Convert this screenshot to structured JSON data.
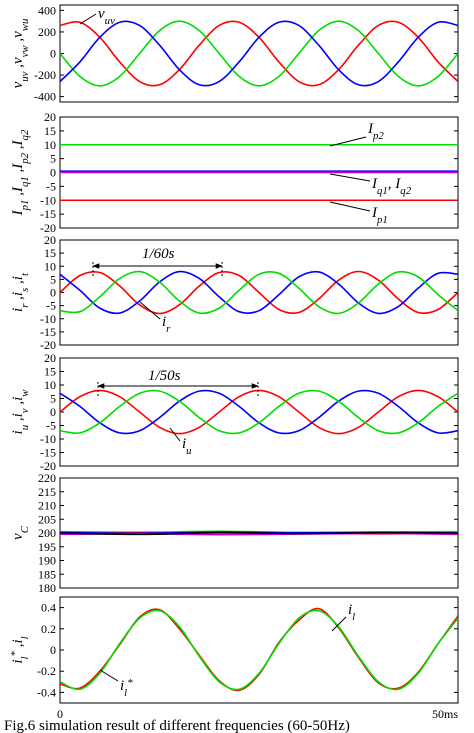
{
  "chart_data": [
    {
      "type": "line",
      "ylabel": [
        {
          "text": "v",
          "sub": "uv"
        },
        {
          "text": " ,"
        },
        {
          "text": "v",
          "sub": "vw"
        },
        {
          "text": " ,"
        },
        {
          "text": "v",
          "sub": "wu"
        }
      ],
      "x": [
        0,
        2.5,
        5,
        7.5,
        10,
        12.5,
        15,
        17.5,
        20,
        22.5,
        25,
        27.5,
        30,
        32.5,
        35,
        37.5,
        40,
        42.5,
        45,
        47.5,
        50
      ],
      "xlim": [
        0,
        50
      ],
      "ylim": [
        -450,
        450
      ],
      "yticks": [
        -400,
        -200,
        0,
        200,
        400
      ],
      "series": [
        {
          "color": "#ff0000",
          "values": [
            260,
            290,
            150,
            -78,
            -260,
            -290,
            -150,
            78,
            260,
            290,
            150,
            -78,
            -260,
            -290,
            -150,
            78,
            260,
            290,
            150,
            -78,
            -260
          ]
        },
        {
          "color": "#00dd00",
          "values": [
            0,
            -212,
            -300,
            -212,
            0,
            212,
            300,
            212,
            0,
            -212,
            -300,
            -212,
            0,
            212,
            300,
            212,
            0,
            -212,
            -300,
            -212,
            0
          ]
        },
        {
          "color": "#0000ff",
          "values": [
            -260,
            -78,
            150,
            290,
            260,
            78,
            -150,
            -290,
            -260,
            -78,
            150,
            290,
            260,
            78,
            -150,
            -290,
            -260,
            -78,
            150,
            290,
            260
          ]
        }
      ],
      "annotations": [
        [
          {
            "text": "v",
            "sub": "uv"
          }
        ]
      ]
    },
    {
      "type": "line",
      "ylabel": [
        {
          "text": "I",
          "sub": "p1"
        },
        {
          "text": " ,"
        },
        {
          "text": "I",
          "sub": "q1"
        },
        {
          "text": " ,"
        },
        {
          "text": "I",
          "sub": "p2"
        },
        {
          "text": " ,"
        },
        {
          "text": "I",
          "sub": "q2"
        }
      ],
      "x": [
        0,
        50
      ],
      "xlim": [
        0,
        50
      ],
      "ylim": [
        -20,
        20
      ],
      "yticks": [
        -20,
        -15,
        -10,
        -5,
        0,
        5,
        10,
        15,
        20
      ],
      "series": [
        {
          "color": "#00dd00",
          "values": [
            10,
            10
          ]
        },
        {
          "color": "#0000ff",
          "values": [
            0.5,
            0.5
          ]
        },
        {
          "color": "#cc00cc",
          "values": [
            0,
            0
          ]
        },
        {
          "color": "#ff0000",
          "values": [
            -10,
            -10
          ]
        }
      ],
      "annotations": [
        [
          {
            "text": "I",
            "sub": "p2"
          }
        ],
        [
          {
            "text": "I",
            "sub": "q1"
          },
          {
            "text": ", "
          },
          {
            "text": "I",
            "sub": "q2"
          }
        ],
        [
          {
            "text": "I",
            "sub": "p1"
          }
        ]
      ]
    },
    {
      "type": "line",
      "ylabel": [
        {
          "text": "i",
          "sub": "r"
        },
        {
          "text": " ,"
        },
        {
          "text": "i",
          "sub": "s"
        },
        {
          "text": " ,"
        },
        {
          "text": "i",
          "sub": "t"
        }
      ],
      "x": [
        0,
        2.5,
        5,
        7.5,
        10,
        12.5,
        15,
        17.5,
        20,
        22.5,
        25,
        27.5,
        30,
        32.5,
        35,
        37.5,
        40,
        42.5,
        45,
        47.5,
        50
      ],
      "xlim": [
        0,
        50
      ],
      "ylim": [
        -20,
        20
      ],
      "yticks": [
        -20,
        -15,
        -10,
        -5,
        0,
        5,
        10,
        15,
        20
      ],
      "series": [
        {
          "color": "#ff0000",
          "values": [
            0,
            6.47,
            7.61,
            2.47,
            -4.7,
            -8,
            -4.7,
            2.47,
            7.61,
            6.47,
            0,
            -6.47,
            -7.61,
            -2.47,
            4.7,
            8,
            4.7,
            -2.47,
            -7.61,
            -6.47,
            0
          ]
        },
        {
          "color": "#0000ff",
          "values": [
            6.93,
            0.84,
            -5.95,
            -7.82,
            -3.25,
            4,
            7.96,
            5.35,
            -1.66,
            -7.31,
            -6.93,
            -0.84,
            5.95,
            7.82,
            3.25,
            -4,
            -7.96,
            -5.35,
            1.66,
            7.31,
            6.93
          ]
        },
        {
          "color": "#00dd00",
          "values": [
            -6.93,
            -7.31,
            -1.66,
            5.35,
            7.96,
            4,
            -3.25,
            -7.82,
            -5.95,
            0.84,
            6.93,
            7.31,
            1.66,
            -5.35,
            -7.96,
            -4,
            3.25,
            7.82,
            5.95,
            -0.84,
            -6.93
          ]
        }
      ],
      "annotations": [
        [
          {
            "text": "1/60s"
          }
        ],
        [
          {
            "text": "i",
            "sub": "r"
          }
        ]
      ]
    },
    {
      "type": "line",
      "ylabel": [
        {
          "text": "i",
          "sub": "u"
        },
        {
          "text": " ,"
        },
        {
          "text": "i",
          "sub": "v"
        },
        {
          "text": " ,"
        },
        {
          "text": "i",
          "sub": "w"
        }
      ],
      "x": [
        0,
        2.5,
        5,
        7.5,
        10,
        12.5,
        15,
        17.5,
        20,
        22.5,
        25,
        27.5,
        30,
        32.5,
        35,
        37.5,
        40,
        42.5,
        45,
        47.5,
        50
      ],
      "xlim": [
        0,
        50
      ],
      "ylim": [
        -20,
        20
      ],
      "yticks": [
        -20,
        -15,
        -10,
        -5,
        0,
        5,
        10,
        15,
        20
      ],
      "series": [
        {
          "color": "#ff0000",
          "values": [
            0,
            5.66,
            8,
            5.66,
            0,
            -5.66,
            -8,
            -5.66,
            0,
            5.66,
            8,
            5.66,
            0,
            -5.66,
            -8,
            -5.66,
            0,
            5.66,
            8,
            5.66,
            0
          ]
        },
        {
          "color": "#0000ff",
          "values": [
            6.93,
            2.07,
            -4,
            -7.73,
            -6.93,
            -2.07,
            4,
            7.73,
            6.93,
            2.07,
            -4,
            -7.73,
            -6.93,
            -2.07,
            4,
            7.73,
            6.93,
            2.07,
            -4,
            -7.73,
            -6.93
          ]
        },
        {
          "color": "#00dd00",
          "values": [
            -6.93,
            -7.73,
            -4,
            2.07,
            6.93,
            7.73,
            4,
            -2.07,
            -6.93,
            -7.73,
            -4,
            2.07,
            6.93,
            7.73,
            4,
            -2.07,
            -6.93,
            -7.73,
            -4,
            2.07,
            6.93
          ]
        }
      ],
      "annotations": [
        [
          {
            "text": "1/50s"
          }
        ],
        [
          {
            "text": "i",
            "sub": "u"
          }
        ]
      ]
    },
    {
      "type": "line",
      "ylabel": [
        {
          "text": "v",
          "sub": "C"
        }
      ],
      "x": [
        0,
        10,
        20,
        30,
        40,
        50
      ],
      "xlim": [
        0,
        50
      ],
      "ylim": [
        180,
        220
      ],
      "yticks": [
        180,
        185,
        190,
        195,
        200,
        205,
        210,
        215,
        220
      ],
      "series": [
        {
          "color": "#00dd00",
          "values": [
            200.5,
            200.3,
            200.6,
            200.2,
            200.4,
            200.5
          ]
        },
        {
          "color": "#ff0000",
          "values": [
            199.8,
            200.1,
            199.6,
            200,
            199.7,
            199.9
          ]
        },
        {
          "color": "#0000ff",
          "values": [
            200.2,
            199.9,
            200.3,
            200.1,
            200.2,
            200
          ]
        },
        {
          "color": "#cc00cc",
          "values": [
            199.5,
            199.7,
            199.4,
            199.6,
            199.8,
            199.5
          ]
        },
        {
          "color": "#000000",
          "values": [
            200,
            199.5,
            200.2,
            199.8,
            200.1,
            200
          ]
        }
      ],
      "annotations": []
    },
    {
      "type": "line",
      "ylabel": [
        {
          "text": "i",
          "sub": "l",
          "sup": "*"
        },
        {
          "text": " ,"
        },
        {
          "text": "i",
          "sub": "l"
        }
      ],
      "x": [
        0,
        2.5,
        5,
        7.5,
        10,
        12.5,
        15,
        17.5,
        20,
        22.5,
        25,
        27.5,
        30,
        32.5,
        35,
        37.5,
        40,
        42.5,
        45,
        47.5,
        50
      ],
      "xlim": [
        0,
        50
      ],
      "ylim": [
        -0.5,
        0.5
      ],
      "yticks": [
        -0.4,
        -0.2,
        0,
        0.2,
        0.4
      ],
      "xticks": [
        0,
        {
          "value": 50,
          "label": "50ms"
        }
      ],
      "series": [
        {
          "color": "#ff0000",
          "values": [
            -0.32,
            -0.36,
            -0.2,
            0.05,
            0.31,
            0.38,
            0.2,
            -0.05,
            -0.29,
            -0.38,
            -0.23,
            0.07,
            0.28,
            0.39,
            0.21,
            -0.07,
            -0.31,
            -0.36,
            -0.21,
            0.06,
            0.32
          ]
        },
        {
          "color": "#00dd00",
          "values": [
            -0.3,
            -0.37,
            -0.22,
            0.06,
            0.3,
            0.37,
            0.22,
            -0.06,
            -0.3,
            -0.37,
            -0.22,
            0.06,
            0.3,
            0.37,
            0.22,
            -0.06,
            -0.3,
            -0.37,
            -0.22,
            0.06,
            0.3
          ]
        }
      ],
      "annotations": [
        [
          {
            "text": "i",
            "sub": "l"
          }
        ],
        [
          {
            "text": "i",
            "sub": "l",
            "sup": "*"
          }
        ]
      ]
    }
  ],
  "caption": "Fig.6 simulation result of different frequencies (60-50Hz)"
}
